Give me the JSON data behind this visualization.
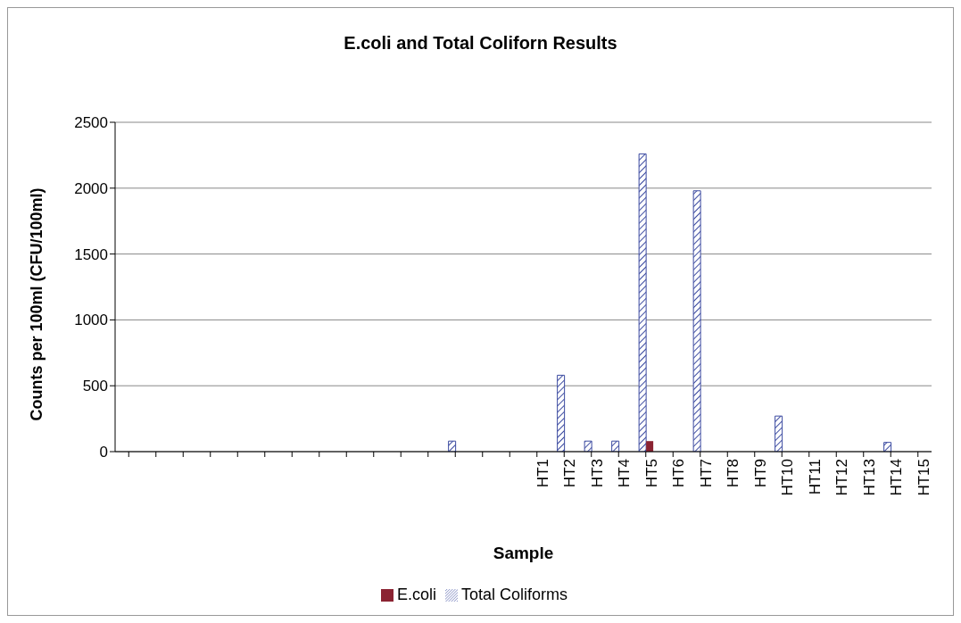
{
  "chart_data": {
    "type": "bar",
    "title": "E.coli and Total Coliforn Results",
    "xlabel": "Sample",
    "ylabel": "Counts per 100ml (CFU/100ml)",
    "categories": [
      null,
      null,
      null,
      null,
      null,
      null,
      null,
      null,
      null,
      null,
      null,
      null,
      null,
      null,
      null,
      "HT1",
      "HT2",
      "HT3",
      "HT4",
      "HT5",
      "HT6",
      "HT7",
      "HT8",
      "HT9",
      "HT10",
      "HT11",
      "HT12",
      "HT13",
      "HT14",
      "HT15"
    ],
    "series": [
      {
        "name": "Total Coliforms",
        "color": "#3b4aa0",
        "values": [
          0,
          0,
          0,
          0,
          0,
          0,
          0,
          0,
          0,
          0,
          0,
          0,
          80,
          0,
          0,
          0,
          580,
          80,
          80,
          2260,
          0,
          1980,
          0,
          0,
          270,
          0,
          0,
          0,
          70,
          0
        ]
      },
      {
        "name": "E.coli",
        "color": "#8b2332",
        "values": [
          0,
          0,
          0,
          0,
          0,
          0,
          0,
          0,
          0,
          0,
          0,
          0,
          0,
          0,
          0,
          0,
          0,
          0,
          0,
          80,
          0,
          0,
          0,
          0,
          0,
          0,
          0,
          0,
          0,
          0
        ]
      }
    ],
    "ylim": [
      0,
      2500
    ],
    "yticks": [
      0,
      500,
      1000,
      1500,
      2000,
      2500
    ],
    "grid": "y",
    "legend": "bottom"
  }
}
